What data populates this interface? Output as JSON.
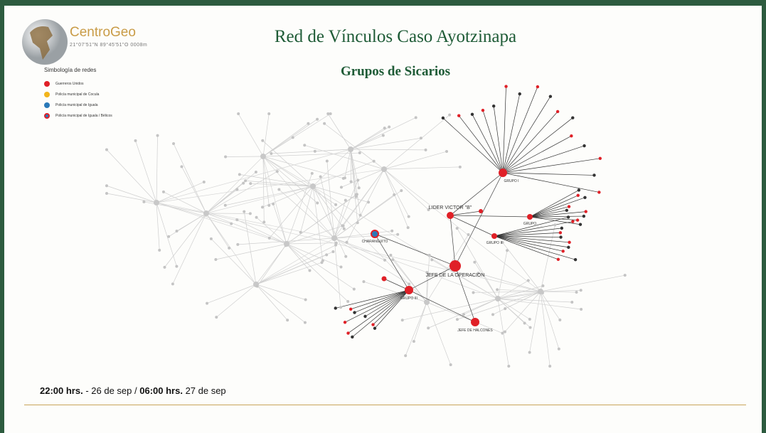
{
  "header": {
    "logo": "CentroGeo",
    "logo_caption": "21°07'51\"N 89°45'51\"O 0008m",
    "title": "Red de Vínculos Caso Ayotzinapa",
    "subtitle": "Grupos de Sicarios"
  },
  "legend": {
    "title": "Simbología de redes",
    "items": [
      {
        "label": "Guerreros Unidos",
        "color": "#e02027"
      },
      {
        "label": "Policía municipal de Cocula",
        "color": "#f2b51c"
      },
      {
        "label": "Policía municipal de Iguala",
        "color": "#2a79b8"
      },
      {
        "label": "Policía municipal de Iguala / Bélicos",
        "color": "#2a79b8",
        "ring": "#e02027"
      }
    ]
  },
  "nodes": [
    {
      "label": "GRUPO I"
    },
    {
      "label": "LIDER VICTOR \"B\""
    },
    {
      "label": "GRUPO"
    },
    {
      "label": "GRUPO II"
    },
    {
      "label": "JEFE DE LA OPERACION"
    },
    {
      "label": "CHARANGUITO"
    },
    {
      "label": "GRUPO III"
    },
    {
      "label": "JEFE DE HALCONES"
    }
  ],
  "footer": {
    "start_time": "22:00 hrs.",
    "start_date": "- 26 de sep /",
    "end_time": "06:00 hrs.",
    "end_date": "27 de sep"
  }
}
